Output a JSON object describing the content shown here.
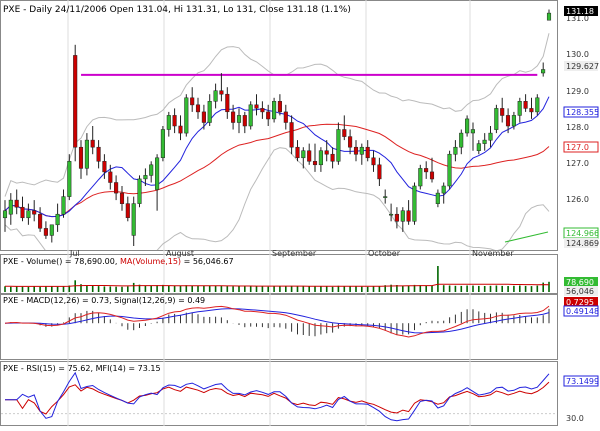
{
  "header": {
    "symbol": "PXE",
    "info": "- Daily 24/11/2006 Open 131.04, Hi 131.31, Lo 131, Close 131.18 (1.1%)"
  },
  "colors": {
    "up": "#33bb33",
    "down": "#cc0000",
    "ma_fast": "#2222dd",
    "ma_slow": "#dd2222",
    "bands": "#bbbbbb",
    "resistance": "#cc00cc",
    "volume": "#006600",
    "volume_ma": "#cc0000",
    "rsi": "#cc0000",
    "mfi": "#2222dd"
  },
  "month_labels": [
    "Jul",
    "August",
    "September",
    "October",
    "November"
  ],
  "price_axis": {
    "ticks": [
      "131.0",
      "130.0",
      "129.0",
      "128.0",
      "127.0",
      "126.0"
    ],
    "right_labels": [
      "131.18",
      "129.627",
      "128.355",
      "127.0",
      "124.966",
      "124.869"
    ],
    "ylim": [
      124.6,
      131.4
    ]
  },
  "panels": {
    "volume": {
      "title": "PXE - Volume(",
      "value": "78,690.00",
      "ma_label": "MA(Volume,15)",
      "ma_value": "56,046.67",
      "right_labels": [
        "78,690",
        "56,046"
      ]
    },
    "macd": {
      "title": "PXE - MACD(",
      "macd_label": "12,26",
      "macd_value": "0.73",
      "signal_label": "Signal(12,26,9)",
      "signal_value": "0.49",
      "right_labels": [
        "0.7295",
        "0.491481"
      ]
    },
    "rsi": {
      "title": "PXE - RSI(",
      "rsi_label": "15",
      "rsi_value": "75.62",
      "mfi_label": "MFI(14)",
      "mfi_value": "73.15",
      "right_labels": [
        "73.1499",
        "30.0"
      ]
    }
  },
  "chart_data": [
    {
      "type": "candlestick",
      "title": "PXE - Daily 24/11/2006",
      "x_start": "2006-06-20",
      "x_end": "2006-11-24",
      "ylim": [
        124.6,
        131.4
      ],
      "resistance_level": 129.45,
      "ohlc": [
        [
          125.4,
          125.9,
          125.0,
          125.6
        ],
        [
          125.5,
          126.1,
          125.2,
          125.9
        ],
        [
          125.9,
          126.2,
          125.5,
          125.7
        ],
        [
          125.7,
          126.0,
          125.3,
          125.4
        ],
        [
          125.4,
          125.8,
          125.2,
          125.6
        ],
        [
          125.6,
          125.9,
          125.3,
          125.5
        ],
        [
          125.5,
          125.7,
          125.0,
          125.1
        ],
        [
          125.1,
          125.3,
          124.8,
          124.9
        ],
        [
          124.9,
          125.2,
          124.7,
          125.2
        ],
        [
          125.2,
          125.8,
          125.0,
          125.5
        ],
        [
          125.5,
          126.2,
          125.4,
          126.0
        ],
        [
          126.0,
          127.2,
          125.9,
          127.0
        ],
        [
          130.0,
          130.3,
          127.0,
          127.4
        ],
        [
          127.4,
          127.6,
          126.5,
          126.8
        ],
        [
          126.8,
          127.8,
          126.6,
          127.6
        ],
        [
          127.6,
          128.0,
          127.2,
          127.4
        ],
        [
          127.4,
          127.6,
          126.8,
          127.0
        ],
        [
          127.0,
          127.2,
          126.5,
          126.7
        ],
        [
          126.7,
          126.9,
          126.2,
          126.4
        ],
        [
          126.4,
          126.6,
          125.9,
          126.1
        ],
        [
          126.1,
          126.3,
          125.6,
          125.8
        ],
        [
          125.8,
          126.0,
          125.3,
          125.4
        ],
        [
          124.9,
          126.0,
          124.6,
          125.8
        ],
        [
          125.8,
          126.6,
          125.7,
          126.5
        ],
        [
          126.5,
          126.8,
          126.3,
          126.6
        ],
        [
          126.6,
          127.0,
          126.4,
          126.9
        ],
        [
          126.2,
          127.2,
          125.6,
          127.1
        ],
        [
          127.1,
          128.0,
          127.0,
          127.9
        ],
        [
          127.9,
          128.4,
          127.7,
          128.3
        ],
        [
          128.3,
          128.5,
          127.8,
          128.0
        ],
        [
          128.0,
          128.3,
          127.6,
          127.8
        ],
        [
          127.8,
          128.9,
          127.7,
          128.8
        ],
        [
          128.8,
          129.1,
          128.4,
          128.6
        ],
        [
          128.6,
          128.8,
          128.2,
          128.4
        ],
        [
          128.4,
          128.6,
          127.9,
          128.1
        ],
        [
          128.1,
          128.9,
          128.0,
          128.7
        ],
        [
          128.7,
          129.2,
          128.5,
          129.0
        ],
        [
          129.0,
          129.5,
          128.7,
          128.9
        ],
        [
          128.9,
          129.1,
          128.2,
          128.4
        ],
        [
          128.4,
          128.6,
          127.9,
          128.1
        ],
        [
          128.1,
          128.5,
          127.8,
          128.3
        ],
        [
          128.3,
          128.4,
          127.8,
          128.0
        ],
        [
          128.0,
          128.7,
          127.9,
          128.6
        ],
        [
          128.6,
          128.9,
          128.3,
          128.5
        ],
        [
          128.5,
          128.7,
          128.2,
          128.4
        ],
        [
          128.4,
          128.6,
          128.0,
          128.2
        ],
        [
          128.2,
          128.8,
          128.1,
          128.7
        ],
        [
          128.7,
          128.9,
          128.3,
          128.4
        ],
        [
          128.4,
          128.6,
          127.9,
          128.1
        ],
        [
          128.1,
          128.3,
          127.2,
          127.4
        ],
        [
          127.4,
          127.6,
          127.0,
          127.1
        ],
        [
          127.1,
          127.4,
          126.8,
          127.3
        ],
        [
          127.3,
          127.5,
          126.9,
          127.0
        ],
        [
          127.0,
          127.5,
          126.7,
          126.9
        ],
        [
          126.9,
          127.4,
          126.7,
          127.3
        ],
        [
          127.3,
          127.6,
          127.0,
          127.2
        ],
        [
          127.2,
          127.4,
          126.8,
          127.0
        ],
        [
          127.0,
          128.1,
          126.9,
          127.9
        ],
        [
          127.9,
          128.3,
          127.6,
          127.7
        ],
        [
          127.7,
          127.9,
          127.2,
          127.4
        ],
        [
          127.4,
          127.6,
          127.0,
          127.2
        ],
        [
          127.2,
          127.5,
          126.9,
          127.4
        ],
        [
          127.4,
          127.6,
          127.0,
          127.1
        ],
        [
          127.1,
          127.3,
          126.7,
          126.9
        ],
        [
          126.9,
          127.1,
          126.3,
          126.5
        ],
        [
          126.0,
          126.2,
          125.8,
          126.0
        ],
        [
          125.5,
          125.8,
          125.3,
          125.5
        ],
        [
          125.5,
          125.7,
          125.1,
          125.3
        ],
        [
          125.3,
          125.7,
          125.0,
          125.6
        ],
        [
          125.6,
          125.9,
          125.2,
          125.3
        ],
        [
          125.3,
          126.4,
          125.2,
          126.3
        ],
        [
          126.3,
          126.9,
          126.2,
          126.8
        ],
        [
          126.8,
          127.0,
          126.5,
          126.7
        ],
        [
          126.7,
          127.1,
          126.4,
          126.5
        ],
        [
          125.8,
          126.2,
          125.7,
          126.1
        ],
        [
          126.1,
          126.4,
          125.8,
          126.3
        ],
        [
          126.3,
          127.3,
          126.2,
          127.2
        ],
        [
          127.2,
          127.6,
          127.0,
          127.4
        ],
        [
          127.4,
          127.9,
          127.2,
          127.8
        ],
        [
          127.8,
          128.3,
          127.7,
          128.2
        ],
        [
          127.8,
          128.1,
          127.3,
          127.9
        ],
        [
          127.3,
          127.6,
          127.2,
          127.5
        ],
        [
          127.5,
          127.8,
          127.3,
          127.6
        ],
        [
          127.6,
          128.0,
          127.4,
          127.8
        ],
        [
          127.9,
          128.6,
          127.8,
          128.5
        ],
        [
          128.5,
          128.8,
          128.1,
          128.3
        ],
        [
          128.3,
          128.5,
          127.8,
          128.0
        ],
        [
          128.0,
          128.4,
          127.9,
          128.3
        ],
        [
          128.3,
          128.8,
          128.1,
          128.7
        ],
        [
          128.7,
          128.9,
          128.4,
          128.5
        ],
        [
          128.5,
          128.8,
          128.2,
          128.4
        ],
        [
          128.4,
          128.9,
          128.3,
          128.8
        ],
        [
          129.5,
          129.8,
          129.4,
          129.6
        ],
        [
          131.0,
          131.3,
          131.0,
          131.2
        ]
      ]
    },
    {
      "type": "bar",
      "title": "Volume",
      "volume_values": [
        44000,
        40000,
        42000,
        41000,
        39000,
        43000,
        40000,
        44000,
        42000,
        41000,
        45000,
        50000,
        90000,
        60000,
        52000,
        48000,
        45000,
        43000,
        42000,
        41000,
        40000,
        42000,
        70000,
        56000,
        50000,
        47000,
        52000,
        55000,
        50000,
        48000,
        46000,
        52000,
        49000,
        47000,
        46000,
        48000,
        50000,
        47000,
        45000,
        44000,
        43000,
        42000,
        44000,
        43000,
        42000,
        41000,
        44000,
        42000,
        45000,
        47000,
        44000,
        42000,
        43000,
        46000,
        44000,
        42000,
        40000,
        48000,
        45000,
        43000,
        42000,
        41000,
        40000,
        43000,
        46000,
        52000,
        56000,
        54000,
        50000,
        48000,
        55000,
        52000,
        49000,
        47000,
        200000,
        52000,
        50000,
        48000,
        47000,
        50000,
        49000,
        47000,
        46000,
        48000,
        50000,
        47000,
        46000,
        48000,
        50000,
        47000,
        45000,
        49000,
        72000,
        78690
      ],
      "ma_values": [
        44000,
        44000,
        43000,
        43000,
        43000,
        43000,
        43000,
        43000,
        43000,
        43000,
        43000,
        44000,
        48000,
        49000,
        50000,
        50000,
        50000,
        50000,
        49000,
        48000,
        47000,
        47000,
        48000,
        49000,
        49000,
        49000,
        49000,
        49000,
        49000,
        48000,
        48000,
        48000,
        48000,
        48000,
        48000,
        48000,
        48000,
        48000,
        47000,
        47000,
        46000,
        46000,
        46000,
        45000,
        45000,
        45000,
        45000,
        45000,
        45000,
        45000,
        45000,
        45000,
        44000,
        44000,
        44000,
        44000,
        44000,
        44000,
        44000,
        44000,
        44000,
        44000,
        44000,
        44000,
        44000,
        45000,
        46000,
        47000,
        47000,
        48000,
        48000,
        49000,
        49000,
        49000,
        59000,
        59000,
        60000,
        60000,
        60000,
        60000,
        60000,
        60000,
        60000,
        60000,
        60000,
        59000,
        59000,
        58000,
        58000,
        57000,
        57000,
        56000,
        57000,
        56047
      ]
    },
    {
      "type": "line",
      "title": "MACD(12,26)",
      "ylim": [
        -1.4,
        1.0
      ]
    },
    {
      "type": "line",
      "title": "RSI(15), MFI(14)",
      "ylim": [
        15,
        100
      ],
      "y_gridline": 30
    }
  ]
}
